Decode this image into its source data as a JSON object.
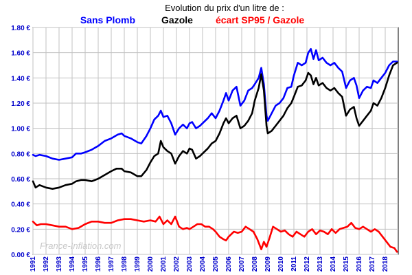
{
  "chart_data": {
    "type": "line",
    "title": "Evolution  du prix d'un litre de :",
    "legend": [
      {
        "label": "Sans Plomb",
        "color": "#0000ff"
      },
      {
        "label": "Gazole",
        "color": "#000000"
      },
      {
        "label": "écart SP95 / Gazole",
        "color": "#ff0000"
      }
    ],
    "watermark": "France-Inflation.com",
    "ylim": [
      0,
      1.8
    ],
    "yticks": [
      {
        "value": 0.0,
        "label": "0.00 €"
      },
      {
        "value": 0.2,
        "label": "0.20 €"
      },
      {
        "value": 0.4,
        "label": "0.40 €"
      },
      {
        "value": 0.6,
        "label": "0.60 €"
      },
      {
        "value": 0.8,
        "label": "0.80 €"
      },
      {
        "value": 1.0,
        "label": "1.00 €"
      },
      {
        "value": 1.2,
        "label": "1.20 €"
      },
      {
        "value": 1.4,
        "label": "1.40 €"
      },
      {
        "value": 1.6,
        "label": "1.60 €"
      },
      {
        "value": 1.8,
        "label": "1.80 €"
      }
    ],
    "xlim": [
      1991,
      2019
    ],
    "xticks": [
      "1991",
      "1992",
      "1993",
      "1994",
      "1995",
      "1996",
      "1997",
      "1998",
      "1999",
      "2000",
      "2001",
      "2002",
      "2003",
      "2004",
      "2005",
      "2006",
      "2007",
      "2008",
      "2009",
      "2010",
      "2011",
      "2012",
      "2013",
      "2014",
      "2015",
      "2016",
      "2017",
      "2018"
    ],
    "grid": true,
    "series": [
      {
        "name": "Sans Plomb",
        "color": "#0000ff",
        "points": [
          [
            1991.0,
            0.79
          ],
          [
            1991.2,
            0.78
          ],
          [
            1991.5,
            0.79
          ],
          [
            1992.0,
            0.78
          ],
          [
            1992.5,
            0.76
          ],
          [
            1993.0,
            0.75
          ],
          [
            1993.5,
            0.76
          ],
          [
            1994.0,
            0.77
          ],
          [
            1994.3,
            0.8
          ],
          [
            1994.7,
            0.8
          ],
          [
            1995.0,
            0.81
          ],
          [
            1995.5,
            0.83
          ],
          [
            1996.0,
            0.86
          ],
          [
            1996.5,
            0.9
          ],
          [
            1997.0,
            0.92
          ],
          [
            1997.5,
            0.95
          ],
          [
            1997.8,
            0.96
          ],
          [
            1998.0,
            0.94
          ],
          [
            1998.5,
            0.92
          ],
          [
            1999.0,
            0.89
          ],
          [
            1999.3,
            0.88
          ],
          [
            1999.7,
            0.94
          ],
          [
            2000.0,
            1.0
          ],
          [
            2000.3,
            1.07
          ],
          [
            2000.6,
            1.1
          ],
          [
            2000.8,
            1.14
          ],
          [
            2001.0,
            1.09
          ],
          [
            2001.3,
            1.1
          ],
          [
            2001.6,
            1.04
          ],
          [
            2001.9,
            0.95
          ],
          [
            2002.2,
            1.0
          ],
          [
            2002.5,
            1.03
          ],
          [
            2002.8,
            1.0
          ],
          [
            2003.0,
            1.04
          ],
          [
            2003.2,
            1.05
          ],
          [
            2003.5,
            1.0
          ],
          [
            2003.8,
            1.02
          ],
          [
            2004.0,
            1.04
          ],
          [
            2004.4,
            1.08
          ],
          [
            2004.7,
            1.12
          ],
          [
            2005.0,
            1.08
          ],
          [
            2005.3,
            1.14
          ],
          [
            2005.6,
            1.22
          ],
          [
            2005.8,
            1.28
          ],
          [
            2006.0,
            1.22
          ],
          [
            2006.3,
            1.3
          ],
          [
            2006.6,
            1.33
          ],
          [
            2006.9,
            1.18
          ],
          [
            2007.2,
            1.22
          ],
          [
            2007.5,
            1.3
          ],
          [
            2007.8,
            1.32
          ],
          [
            2008.0,
            1.35
          ],
          [
            2008.3,
            1.4
          ],
          [
            2008.5,
            1.48
          ],
          [
            2008.7,
            1.35
          ],
          [
            2008.9,
            1.1
          ],
          [
            2009.0,
            1.06
          ],
          [
            2009.3,
            1.12
          ],
          [
            2009.6,
            1.18
          ],
          [
            2009.9,
            1.2
          ],
          [
            2010.2,
            1.24
          ],
          [
            2010.5,
            1.32
          ],
          [
            2010.8,
            1.33
          ],
          [
            2011.0,
            1.42
          ],
          [
            2011.3,
            1.52
          ],
          [
            2011.6,
            1.5
          ],
          [
            2011.9,
            1.52
          ],
          [
            2012.1,
            1.6
          ],
          [
            2012.3,
            1.63
          ],
          [
            2012.5,
            1.55
          ],
          [
            2012.7,
            1.62
          ],
          [
            2012.9,
            1.54
          ],
          [
            2013.2,
            1.56
          ],
          [
            2013.5,
            1.52
          ],
          [
            2013.8,
            1.5
          ],
          [
            2014.1,
            1.52
          ],
          [
            2014.4,
            1.48
          ],
          [
            2014.7,
            1.45
          ],
          [
            2015.0,
            1.32
          ],
          [
            2015.3,
            1.38
          ],
          [
            2015.6,
            1.4
          ],
          [
            2015.8,
            1.34
          ],
          [
            2016.0,
            1.24
          ],
          [
            2016.3,
            1.3
          ],
          [
            2016.6,
            1.33
          ],
          [
            2016.9,
            1.32
          ],
          [
            2017.1,
            1.38
          ],
          [
            2017.4,
            1.36
          ],
          [
            2017.7,
            1.4
          ],
          [
            2018.0,
            1.44
          ],
          [
            2018.3,
            1.5
          ],
          [
            2018.6,
            1.53
          ],
          [
            2018.9,
            1.53
          ]
        ]
      },
      {
        "name": "Gazole",
        "color": "#000000",
        "points": [
          [
            1991.0,
            0.58
          ],
          [
            1991.2,
            0.53
          ],
          [
            1991.5,
            0.55
          ],
          [
            1992.0,
            0.53
          ],
          [
            1992.5,
            0.52
          ],
          [
            1993.0,
            0.53
          ],
          [
            1993.5,
            0.55
          ],
          [
            1994.0,
            0.56
          ],
          [
            1994.3,
            0.58
          ],
          [
            1994.7,
            0.59
          ],
          [
            1995.0,
            0.59
          ],
          [
            1995.5,
            0.58
          ],
          [
            1996.0,
            0.6
          ],
          [
            1996.5,
            0.63
          ],
          [
            1997.0,
            0.66
          ],
          [
            1997.4,
            0.68
          ],
          [
            1997.8,
            0.68
          ],
          [
            1998.0,
            0.66
          ],
          [
            1998.5,
            0.65
          ],
          [
            1999.0,
            0.62
          ],
          [
            1999.3,
            0.62
          ],
          [
            1999.7,
            0.67
          ],
          [
            2000.0,
            0.73
          ],
          [
            2000.3,
            0.78
          ],
          [
            2000.6,
            0.8
          ],
          [
            2000.8,
            0.9
          ],
          [
            2001.0,
            0.85
          ],
          [
            2001.3,
            0.82
          ],
          [
            2001.6,
            0.8
          ],
          [
            2001.9,
            0.72
          ],
          [
            2002.2,
            0.78
          ],
          [
            2002.5,
            0.82
          ],
          [
            2002.8,
            0.8
          ],
          [
            2003.0,
            0.84
          ],
          [
            2003.2,
            0.83
          ],
          [
            2003.5,
            0.76
          ],
          [
            2003.8,
            0.78
          ],
          [
            2004.0,
            0.8
          ],
          [
            2004.4,
            0.84
          ],
          [
            2004.7,
            0.88
          ],
          [
            2005.0,
            0.9
          ],
          [
            2005.3,
            0.96
          ],
          [
            2005.6,
            1.04
          ],
          [
            2005.8,
            1.08
          ],
          [
            2006.0,
            1.04
          ],
          [
            2006.3,
            1.08
          ],
          [
            2006.6,
            1.1
          ],
          [
            2006.9,
            1.0
          ],
          [
            2007.2,
            1.02
          ],
          [
            2007.5,
            1.06
          ],
          [
            2007.8,
            1.12
          ],
          [
            2008.0,
            1.22
          ],
          [
            2008.3,
            1.32
          ],
          [
            2008.5,
            1.43
          ],
          [
            2008.7,
            1.3
          ],
          [
            2008.9,
            1.02
          ],
          [
            2009.0,
            0.96
          ],
          [
            2009.3,
            0.98
          ],
          [
            2009.6,
            1.02
          ],
          [
            2009.9,
            1.06
          ],
          [
            2010.2,
            1.1
          ],
          [
            2010.5,
            1.16
          ],
          [
            2010.8,
            1.2
          ],
          [
            2011.0,
            1.25
          ],
          [
            2011.3,
            1.33
          ],
          [
            2011.6,
            1.34
          ],
          [
            2011.9,
            1.38
          ],
          [
            2012.1,
            1.44
          ],
          [
            2012.3,
            1.42
          ],
          [
            2012.5,
            1.35
          ],
          [
            2012.7,
            1.4
          ],
          [
            2012.9,
            1.34
          ],
          [
            2013.2,
            1.36
          ],
          [
            2013.5,
            1.32
          ],
          [
            2013.8,
            1.3
          ],
          [
            2014.1,
            1.32
          ],
          [
            2014.4,
            1.28
          ],
          [
            2014.7,
            1.25
          ],
          [
            2015.0,
            1.1
          ],
          [
            2015.3,
            1.15
          ],
          [
            2015.6,
            1.17
          ],
          [
            2015.8,
            1.08
          ],
          [
            2016.0,
            1.02
          ],
          [
            2016.3,
            1.06
          ],
          [
            2016.6,
            1.1
          ],
          [
            2016.9,
            1.14
          ],
          [
            2017.1,
            1.2
          ],
          [
            2017.4,
            1.18
          ],
          [
            2017.7,
            1.24
          ],
          [
            2018.0,
            1.32
          ],
          [
            2018.3,
            1.42
          ],
          [
            2018.6,
            1.5
          ],
          [
            2018.9,
            1.52
          ]
        ]
      },
      {
        "name": "écart SP95 / Gazole",
        "color": "#ff0000",
        "points": [
          [
            1991.0,
            0.26
          ],
          [
            1991.3,
            0.23
          ],
          [
            1991.6,
            0.24
          ],
          [
            1992.0,
            0.24
          ],
          [
            1992.5,
            0.23
          ],
          [
            1993.0,
            0.22
          ],
          [
            1993.5,
            0.22
          ],
          [
            1994.0,
            0.2
          ],
          [
            1994.5,
            0.21
          ],
          [
            1995.0,
            0.24
          ],
          [
            1995.5,
            0.26
          ],
          [
            1996.0,
            0.26
          ],
          [
            1996.5,
            0.25
          ],
          [
            1997.0,
            0.25
          ],
          [
            1997.5,
            0.27
          ],
          [
            1998.0,
            0.28
          ],
          [
            1998.5,
            0.28
          ],
          [
            1999.0,
            0.27
          ],
          [
            1999.5,
            0.26
          ],
          [
            2000.0,
            0.27
          ],
          [
            2000.4,
            0.26
          ],
          [
            2000.7,
            0.3
          ],
          [
            2001.0,
            0.24
          ],
          [
            2001.3,
            0.27
          ],
          [
            2001.6,
            0.24
          ],
          [
            2001.9,
            0.3
          ],
          [
            2002.2,
            0.22
          ],
          [
            2002.5,
            0.2
          ],
          [
            2002.8,
            0.21
          ],
          [
            2003.0,
            0.2
          ],
          [
            2003.3,
            0.22
          ],
          [
            2003.6,
            0.24
          ],
          [
            2003.9,
            0.24
          ],
          [
            2004.2,
            0.22
          ],
          [
            2004.5,
            0.22
          ],
          [
            2004.8,
            0.2
          ],
          [
            2005.0,
            0.18
          ],
          [
            2005.3,
            0.14
          ],
          [
            2005.6,
            0.12
          ],
          [
            2005.8,
            0.11
          ],
          [
            2006.0,
            0.14
          ],
          [
            2006.4,
            0.18
          ],
          [
            2006.7,
            0.17
          ],
          [
            2007.0,
            0.18
          ],
          [
            2007.3,
            0.22
          ],
          [
            2007.6,
            0.2
          ],
          [
            2007.9,
            0.18
          ],
          [
            2008.2,
            0.12
          ],
          [
            2008.5,
            0.04
          ],
          [
            2008.7,
            0.1
          ],
          [
            2008.9,
            0.06
          ],
          [
            2009.1,
            0.12
          ],
          [
            2009.4,
            0.22
          ],
          [
            2009.7,
            0.2
          ],
          [
            2010.0,
            0.18
          ],
          [
            2010.3,
            0.19
          ],
          [
            2010.6,
            0.16
          ],
          [
            2010.9,
            0.14
          ],
          [
            2011.2,
            0.18
          ],
          [
            2011.5,
            0.16
          ],
          [
            2011.8,
            0.14
          ],
          [
            2012.1,
            0.18
          ],
          [
            2012.4,
            0.2
          ],
          [
            2012.7,
            0.16
          ],
          [
            2013.0,
            0.19
          ],
          [
            2013.3,
            0.18
          ],
          [
            2013.6,
            0.16
          ],
          [
            2013.9,
            0.2
          ],
          [
            2014.2,
            0.17
          ],
          [
            2014.5,
            0.2
          ],
          [
            2014.8,
            0.21
          ],
          [
            2015.1,
            0.22
          ],
          [
            2015.4,
            0.25
          ],
          [
            2015.7,
            0.21
          ],
          [
            2016.0,
            0.2
          ],
          [
            2016.3,
            0.22
          ],
          [
            2016.6,
            0.2
          ],
          [
            2016.9,
            0.18
          ],
          [
            2017.2,
            0.2
          ],
          [
            2017.5,
            0.18
          ],
          [
            2017.8,
            0.14
          ],
          [
            2018.1,
            0.1
          ],
          [
            2018.4,
            0.06
          ],
          [
            2018.7,
            0.05
          ],
          [
            2018.9,
            0.02
          ]
        ]
      }
    ]
  }
}
